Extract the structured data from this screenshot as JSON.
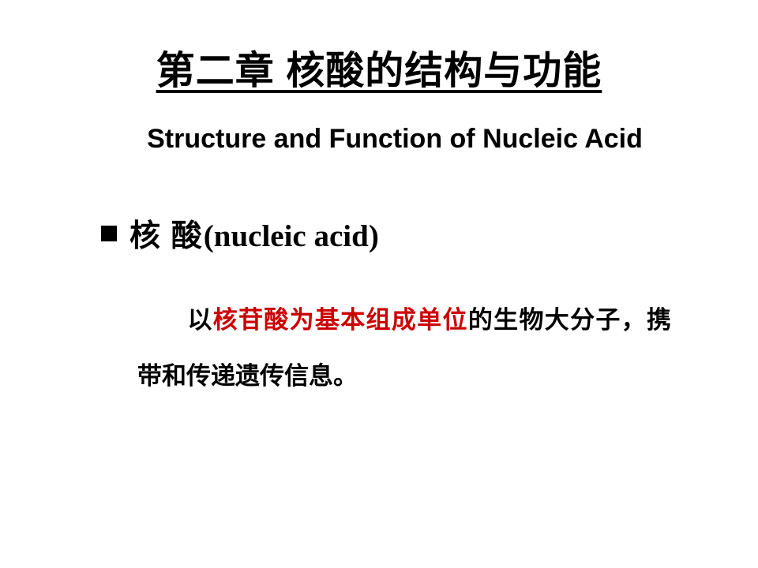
{
  "title": "第二章  核酸的结构与功能",
  "subtitle": "Structure and Function of Nucleic Acid",
  "heading": {
    "cn_part1": "核 酸",
    "paren_part": "(nucleic acid)"
  },
  "body": {
    "prefix": "以",
    "highlight": "核苷酸为基本组成单位",
    "suffix": "的生物大分子，携带和传递遗传信息。"
  },
  "colors": {
    "background": "#ffffff",
    "text": "#000000",
    "highlight": "#cc0000",
    "bullet": "#000000"
  },
  "typography": {
    "title_fontsize": 49,
    "subtitle_fontsize": 34,
    "heading_fontsize": 39,
    "body_fontsize": 31,
    "title_font": "SimHei",
    "body_font": "SimSun"
  }
}
